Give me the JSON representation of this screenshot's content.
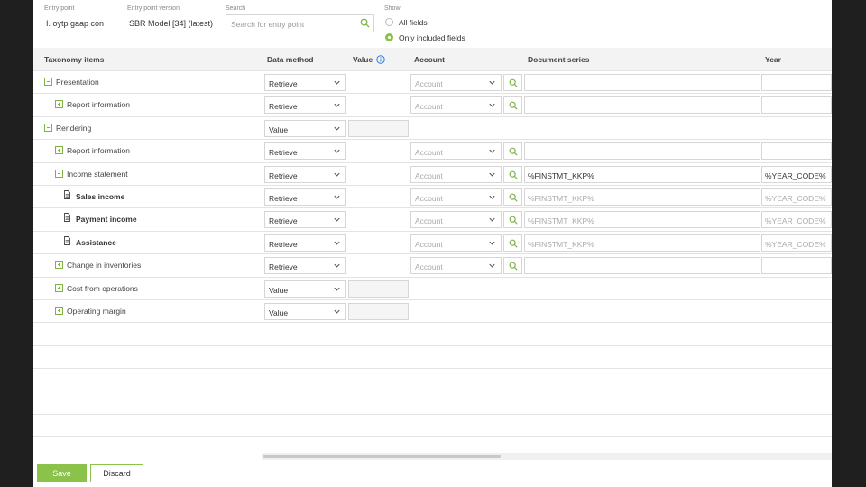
{
  "topbar": {
    "entry_point_label": "Entry point",
    "entry_point_value": "I. oytp gaap con",
    "entry_point_version_label": "Entry point version",
    "entry_point_version_value": "SBR Model [34] (latest)",
    "search_label": "Search",
    "search_placeholder": "Search for entry point",
    "show_label": "Show",
    "show_options": [
      {
        "label": "All fields",
        "selected": false
      },
      {
        "label": "Only included fields",
        "selected": true
      }
    ]
  },
  "columns": {
    "taxonomy": "Taxonomy items",
    "data_method": "Data method",
    "value": "Value",
    "account": "Account",
    "document_series": "Document series",
    "year": "Year"
  },
  "rows": [
    {
      "name": "Presentation",
      "level": 0,
      "icon": "minus",
      "method": "Retrieve",
      "account": "Account",
      "series": "",
      "year": ""
    },
    {
      "name": "Report information",
      "level": 1,
      "icon": "plus",
      "method": "Retrieve",
      "account": "Account",
      "series": "",
      "year": ""
    },
    {
      "name": "Rendering",
      "level": 0,
      "icon": "minus",
      "method": "Value"
    },
    {
      "name": "Report information",
      "level": 1,
      "icon": "plus",
      "method": "Retrieve",
      "account": "Account",
      "series": "",
      "year": ""
    },
    {
      "name": "Income statement",
      "level": 1,
      "icon": "minus",
      "method": "Retrieve",
      "account": "Account",
      "series": "%FINSTMT_KKP%",
      "year": "%YEAR_CODE%"
    },
    {
      "name": "Sales income",
      "level": 2,
      "icon": "doc",
      "method": "Retrieve",
      "account": "Account",
      "series": "%FINSTMT_KKP%",
      "year": "%YEAR_CODE%"
    },
    {
      "name": "Payment income",
      "level": 2,
      "icon": "doc",
      "method": "Retrieve",
      "account": "Account",
      "series": "%FINSTMT_KKP%",
      "year": "%YEAR_CODE%"
    },
    {
      "name": "Assistance",
      "level": 2,
      "icon": "doc",
      "method": "Retrieve",
      "account": "Account",
      "series": "%FINSTMT_KKP%",
      "year": "%YEAR_CODE%"
    },
    {
      "name": "Change in inventories",
      "level": 1,
      "icon": "plus",
      "method": "Retrieve",
      "account": "Account",
      "series": "",
      "year": ""
    },
    {
      "name": "Cost from operations",
      "level": 1,
      "icon": "plus",
      "method": "Value"
    },
    {
      "name": "Operating margin",
      "level": 1,
      "icon": "plus",
      "method": "Value"
    }
  ],
  "footer": {
    "save_label": "Save",
    "discard_label": "Discard"
  },
  "colors": {
    "accent": "#8bc34a",
    "info_icon": "#2e7bd6"
  }
}
